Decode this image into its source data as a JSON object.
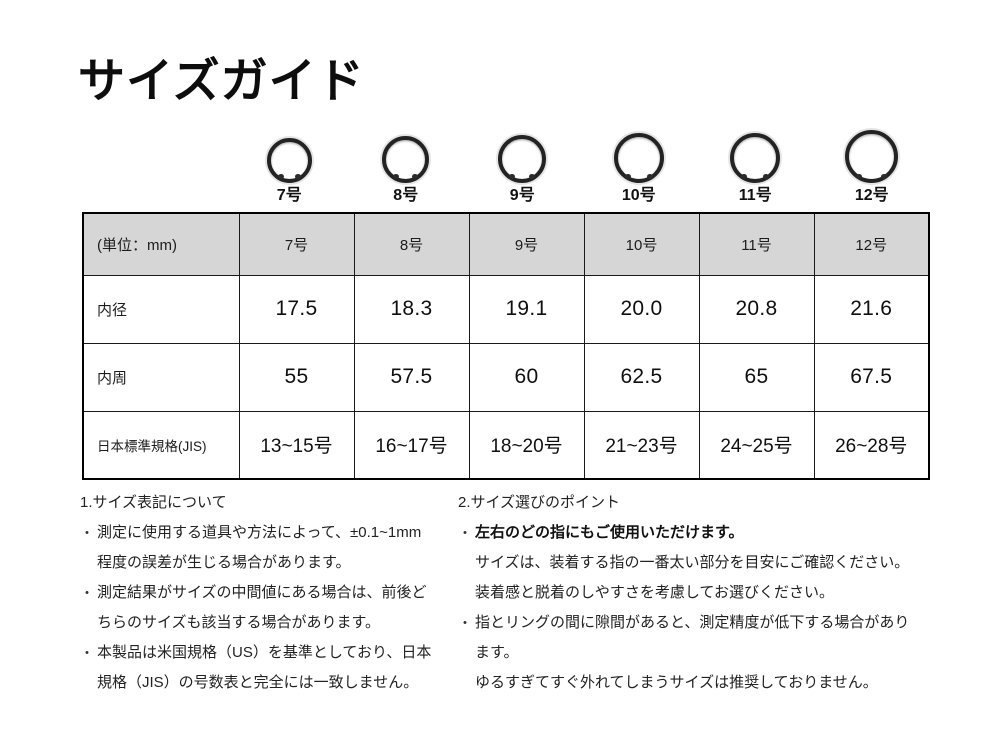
{
  "page": {
    "title": "サイズガイド"
  },
  "colors": {
    "background": "#ffffff",
    "table_header_bg": "#d6d6d6",
    "table_border": "#000000",
    "text": "#1c1c1c",
    "ring_color": "#232323"
  },
  "rings": [
    {
      "label": "7号"
    },
    {
      "label": "8号"
    },
    {
      "label": "9号"
    },
    {
      "label": "10号"
    },
    {
      "label": "11号"
    },
    {
      "label": "12号"
    }
  ],
  "table": {
    "unit_header": "(単位：mm)",
    "columns": [
      "7号",
      "8号",
      "9号",
      "10号",
      "11号",
      "12号"
    ],
    "rows": [
      {
        "label": "内径",
        "values": [
          "17.5",
          "18.3",
          "19.1",
          "20.0",
          "20.8",
          "21.6"
        ]
      },
      {
        "label": "内周",
        "values": [
          "55",
          "57.5",
          "60",
          "62.5",
          "65",
          "67.5"
        ]
      },
      {
        "label": "日本標準規格(JIS)",
        "values": [
          "13~15号",
          "16~17号",
          "18~20号",
          "21~23号",
          "24~25号",
          "26~28号"
        ]
      }
    ]
  },
  "chart_data": {
    "type": "table",
    "title": "サイズガイド",
    "categories": [
      "7号",
      "8号",
      "9号",
      "10号",
      "11号",
      "12号"
    ],
    "series": [
      {
        "name": "内径 (mm)",
        "values": [
          17.5,
          18.3,
          19.1,
          20.0,
          20.8,
          21.6
        ]
      },
      {
        "name": "内周 (mm)",
        "values": [
          55,
          57.5,
          60,
          62.5,
          65,
          67.5
        ]
      },
      {
        "name": "日本標準規格(JIS)",
        "values": [
          "13~15号",
          "16~17号",
          "18~20号",
          "21~23号",
          "24~25号",
          "26~28号"
        ]
      }
    ]
  },
  "notes": {
    "bullet_char": "・",
    "left": {
      "heading": "1.サイズ表記について",
      "bullets": [
        {
          "lines": [
            "測定に使用する道具や方法によって、±0.1~1mm",
            "程度の誤差が生じる場合があります。"
          ]
        },
        {
          "lines": [
            "測定結果がサイズの中間値にある場合は、前後ど",
            "ちらのサイズも該当する場合があります。"
          ]
        },
        {
          "lines": [
            "本製品は米国規格（US）を基準としており、日本",
            "規格（JIS）の号数表と完全には一致しません。"
          ]
        }
      ]
    },
    "right": {
      "heading": "2.サイズ選びのポイント",
      "bullet1_bold": "左右のどの指にもご使用いただけます。",
      "bullet1_lines": [
        "サイズは、装着する指の一番太い部分を目安にご確認ください。",
        "装着感と脱着のしやすさを考慮してお選びください。"
      ],
      "bullet2_lines": [
        "指とリングの間に隙間があると、測定精度が低下する場合があり",
        "ます。",
        "ゆるすぎてすぐ外れてしまうサイズは推奨しておりません。"
      ]
    }
  }
}
